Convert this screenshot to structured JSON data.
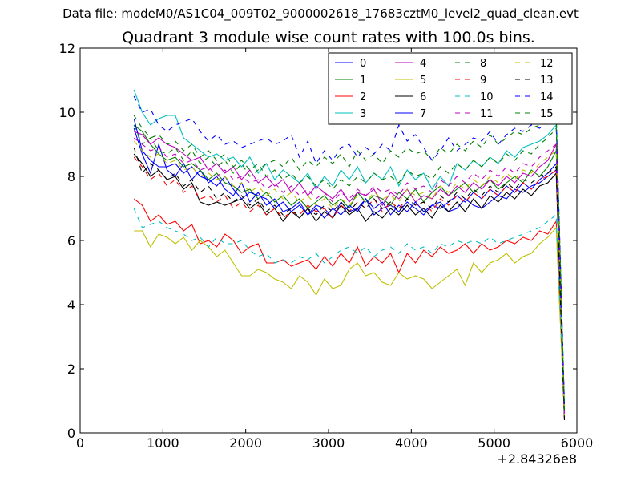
{
  "supertitle": "Data file: modeM0/AS1C04_009T02_9000002618_17683cztM0_level2_quad_clean.evt",
  "chart_data": {
    "type": "line",
    "title": "Quadrant 3 module wise count rates with 100.0s bins.",
    "xlabel": "",
    "ylabel": "",
    "xlim": [
      0,
      6000
    ],
    "ylim": [
      0,
      12
    ],
    "x_offset_label": "+2.84326e8",
    "x_ticks": [
      "0",
      "1000",
      "2000",
      "3000",
      "4000",
      "5000",
      "6000"
    ],
    "y_ticks": [
      "0",
      "2",
      "4",
      "6",
      "8",
      "10",
      "12"
    ],
    "grid": false,
    "legend_position": "top-right",
    "legend_columns": 4,
    "x": [
      650,
      750,
      850,
      950,
      1050,
      1150,
      1250,
      1350,
      1450,
      1550,
      1650,
      1750,
      1850,
      1950,
      2050,
      2150,
      2250,
      2350,
      2450,
      2550,
      2650,
      2750,
      2850,
      2950,
      3050,
      3150,
      3250,
      3350,
      3450,
      3550,
      3650,
      3750,
      3850,
      3950,
      4050,
      4150,
      4250,
      4350,
      4450,
      4550,
      4650,
      4750,
      4850,
      4950,
      5050,
      5150,
      5250,
      5350,
      5450,
      5550,
      5650,
      5750,
      5850
    ],
    "series": [
      {
        "name": "0",
        "color": "#0000ff",
        "dash": "solid",
        "values": [
          9.5,
          8.7,
          8.1,
          9.0,
          8.2,
          8.0,
          8.4,
          7.9,
          8.2,
          7.8,
          8.0,
          7.6,
          7.4,
          7.8,
          7.2,
          7.5,
          7.1,
          7.3,
          6.9,
          7.0,
          7.2,
          6.8,
          7.1,
          7.0,
          6.7,
          7.2,
          6.9,
          7.0,
          7.3,
          6.8,
          7.0,
          7.1,
          6.9,
          7.2,
          7.0,
          6.8,
          7.1,
          7.2,
          6.9,
          7.0,
          7.3,
          7.1,
          7.0,
          7.2,
          7.4,
          7.3,
          7.6,
          7.5,
          7.7,
          7.8,
          8.0,
          8.2,
          0.5
        ]
      },
      {
        "name": "1",
        "color": "#008000",
        "dash": "solid",
        "values": [
          9.6,
          9.4,
          9.0,
          8.7,
          8.5,
          8.6,
          8.3,
          8.4,
          8.2,
          7.9,
          8.1,
          7.8,
          7.7,
          7.5,
          7.6,
          7.3,
          7.5,
          7.2,
          7.4,
          7.1,
          7.3,
          7.0,
          7.2,
          7.4,
          7.1,
          7.3,
          7.0,
          7.5,
          7.2,
          7.4,
          7.3,
          7.1,
          7.5,
          7.3,
          7.6,
          7.2,
          7.5,
          7.7,
          7.4,
          7.6,
          7.8,
          7.5,
          7.7,
          7.9,
          7.6,
          7.8,
          8.0,
          7.8,
          8.2,
          8.0,
          8.3,
          8.8,
          0.6
        ]
      },
      {
        "name": "2",
        "color": "#ff0000",
        "dash": "solid",
        "values": [
          7.3,
          7.1,
          6.6,
          6.8,
          6.5,
          6.6,
          6.3,
          6.5,
          5.9,
          6.0,
          5.8,
          6.2,
          6.0,
          5.6,
          5.8,
          5.9,
          5.3,
          5.3,
          5.4,
          5.2,
          5.3,
          5.4,
          5.1,
          5.5,
          5.2,
          5.6,
          5.3,
          5.8,
          5.2,
          5.5,
          5.3,
          5.6,
          5.0,
          5.6,
          5.3,
          5.7,
          5.5,
          5.8,
          5.6,
          5.7,
          5.9,
          5.6,
          5.9,
          5.7,
          5.8,
          6.0,
          5.9,
          6.1,
          6.0,
          6.3,
          6.2,
          6.6,
          0.5
        ]
      },
      {
        "name": "3",
        "color": "#00bfbf",
        "dash": "solid",
        "values": [
          10.7,
          10.0,
          9.6,
          9.8,
          9.9,
          9.9,
          9.2,
          9.0,
          8.8,
          8.6,
          8.7,
          8.5,
          8.6,
          8.3,
          8.6,
          8.1,
          8.4,
          7.9,
          8.2,
          8.0,
          7.8,
          8.1,
          7.6,
          8.0,
          7.7,
          8.2,
          7.9,
          8.3,
          7.8,
          8.1,
          7.9,
          8.3,
          7.7,
          8.2,
          7.9,
          8.1,
          7.6,
          8.0,
          7.7,
          8.4,
          8.2,
          8.5,
          8.3,
          8.6,
          8.4,
          8.8,
          8.6,
          8.9,
          9.0,
          9.1,
          9.3,
          9.6,
          0.7
        ]
      },
      {
        "name": "4",
        "color": "#bf00bf",
        "dash": "solid",
        "values": [
          9.4,
          9.3,
          9.0,
          9.2,
          9.0,
          8.9,
          8.7,
          8.5,
          8.6,
          8.2,
          8.4,
          8.1,
          8.3,
          7.9,
          8.2,
          7.8,
          8.0,
          7.7,
          7.9,
          7.5,
          7.8,
          7.4,
          7.7,
          7.5,
          7.3,
          7.6,
          7.2,
          7.5,
          7.4,
          7.6,
          7.1,
          7.5,
          7.3,
          7.6,
          7.2,
          7.4,
          7.3,
          7.6,
          7.4,
          7.7,
          7.5,
          7.8,
          7.6,
          7.9,
          7.7,
          8.0,
          7.8,
          8.1,
          8.0,
          8.3,
          8.5,
          9.0,
          0.6
        ]
      },
      {
        "name": "5",
        "color": "#bfbf00",
        "dash": "solid",
        "values": [
          6.3,
          6.3,
          5.8,
          6.2,
          6.1,
          5.9,
          6.1,
          5.7,
          6.0,
          5.8,
          5.5,
          5.7,
          5.3,
          4.9,
          4.9,
          5.1,
          5.0,
          4.8,
          4.7,
          4.5,
          4.9,
          4.7,
          4.3,
          4.8,
          4.5,
          4.6,
          5.1,
          5.3,
          4.9,
          5.0,
          4.7,
          4.6,
          5.0,
          4.8,
          4.9,
          4.8,
          4.5,
          4.7,
          4.9,
          5.1,
          4.6,
          5.3,
          5.0,
          5.3,
          5.4,
          5.6,
          5.3,
          5.5,
          5.6,
          5.9,
          6.1,
          6.4,
          0.5
        ]
      },
      {
        "name": "6",
        "color": "#000000",
        "dash": "solid",
        "values": [
          8.7,
          8.4,
          8.0,
          8.2,
          7.9,
          8.0,
          7.6,
          7.8,
          7.2,
          7.1,
          7.2,
          7.1,
          7.2,
          7.3,
          7.0,
          7.2,
          6.8,
          7.0,
          6.6,
          6.9,
          6.7,
          7.0,
          6.6,
          6.9,
          6.7,
          7.1,
          6.8,
          7.0,
          6.6,
          6.9,
          6.7,
          7.0,
          6.8,
          7.1,
          6.8,
          7.0,
          6.7,
          7.1,
          6.9,
          7.2,
          6.9,
          7.3,
          7.0,
          7.4,
          7.2,
          7.5,
          7.3,
          7.6,
          7.4,
          7.7,
          7.8,
          8.1,
          0.4
        ]
      },
      {
        "name": "7",
        "color": "#0000ff",
        "dash": "solid",
        "values": [
          9.8,
          8.8,
          8.5,
          8.3,
          8.3,
          8.4,
          8.1,
          8.3,
          8.0,
          7.9,
          7.7,
          8.0,
          7.6,
          7.3,
          7.5,
          7.4,
          7.3,
          7.0,
          7.2,
          6.9,
          7.1,
          6.8,
          7.0,
          6.7,
          7.0,
          6.8,
          7.1,
          6.9,
          7.3,
          7.0,
          7.2,
          6.8,
          7.1,
          6.9,
          7.2,
          6.9,
          7.1,
          7.0,
          7.2,
          7.4,
          7.2,
          7.5,
          7.3,
          7.6,
          7.4,
          7.7,
          7.5,
          7.8,
          7.6,
          7.9,
          8.1,
          8.4,
          0.5
        ]
      },
      {
        "name": "8",
        "color": "#008000",
        "dash": "dashed",
        "values": [
          9.6,
          9.0,
          9.2,
          8.8,
          8.7,
          8.9,
          8.5,
          8.8,
          8.4,
          8.6,
          8.3,
          8.5,
          8.1,
          8.4,
          8.0,
          8.2,
          8.4,
          8.5,
          8.3,
          8.6,
          8.2,
          8.5,
          8.3,
          8.6,
          8.4,
          8.7,
          8.3,
          8.8,
          8.5,
          8.7,
          8.4,
          8.8,
          8.6,
          8.9,
          8.7,
          8.8,
          8.5,
          8.9,
          8.7,
          9.0,
          8.8,
          9.1,
          8.9,
          9.3,
          9.0,
          9.2,
          9.4,
          9.3,
          9.5,
          9.6,
          9.9,
          10.0,
          0.8
        ]
      },
      {
        "name": "9",
        "color": "#ff0000",
        "dash": "dashed",
        "values": [
          8.6,
          8.3,
          7.9,
          8.1,
          7.7,
          7.9,
          7.5,
          7.7,
          7.3,
          7.4,
          7.2,
          7.4,
          7.0,
          7.2,
          6.9,
          7.1,
          6.8,
          7.0,
          6.7,
          6.9,
          6.8,
          7.1,
          6.9,
          7.0,
          6.7,
          7.1,
          6.9,
          7.2,
          7.0,
          7.3,
          6.9,
          7.2,
          7.0,
          7.3,
          7.1,
          7.2,
          6.9,
          7.3,
          7.1,
          7.4,
          7.2,
          7.5,
          7.3,
          7.6,
          7.4,
          7.7,
          7.5,
          7.8,
          7.6,
          7.9,
          8.0,
          8.2,
          0.4
        ]
      },
      {
        "name": "10",
        "color": "#00bfbf",
        "dash": "dashed",
        "values": [
          7.0,
          6.4,
          6.5,
          6.6,
          6.4,
          6.3,
          6.2,
          6.0,
          6.1,
          5.8,
          6.1,
          5.9,
          5.9,
          6.0,
          5.7,
          5.5,
          5.6,
          5.3,
          5.4,
          5.3,
          5.5,
          5.4,
          5.6,
          5.3,
          5.5,
          5.7,
          5.8,
          5.6,
          5.8,
          5.5,
          5.7,
          5.8,
          5.6,
          5.9,
          5.7,
          5.8,
          5.6,
          5.9,
          5.8,
          6.0,
          5.9,
          6.0,
          5.9,
          6.1,
          5.9,
          6.0,
          6.1,
          6.2,
          6.3,
          6.4,
          6.6,
          6.8,
          0.6
        ]
      },
      {
        "name": "11",
        "color": "#bf00bf",
        "dash": "dashed",
        "values": [
          9.2,
          9.0,
          8.8,
          8.9,
          8.6,
          8.7,
          8.4,
          8.5,
          8.2,
          8.3,
          8.0,
          8.2,
          7.9,
          8.0,
          7.8,
          7.9,
          7.6,
          7.8,
          7.5,
          7.7,
          7.4,
          7.6,
          7.3,
          7.5,
          7.2,
          7.5,
          7.3,
          7.6,
          7.4,
          7.7,
          7.5,
          7.6,
          7.4,
          7.8,
          7.6,
          7.7,
          7.5,
          7.9,
          7.7,
          8.0,
          7.8,
          8.1,
          7.9,
          8.2,
          8.0,
          8.3,
          8.1,
          8.4,
          8.3,
          8.6,
          8.8,
          9.0,
          0.5
        ]
      },
      {
        "name": "12",
        "color": "#bfbf00",
        "dash": "dashed",
        "values": [
          9.1,
          8.8,
          8.6,
          8.7,
          8.4,
          8.5,
          8.2,
          8.3,
          8.0,
          8.1,
          7.9,
          8.0,
          7.7,
          7.8,
          7.5,
          7.7,
          7.4,
          7.6,
          7.3,
          7.5,
          7.2,
          7.4,
          7.1,
          7.3,
          7.0,
          7.3,
          7.1,
          7.4,
          7.2,
          7.5,
          7.3,
          7.4,
          7.2,
          7.6,
          7.4,
          7.5,
          7.3,
          7.7,
          7.5,
          7.8,
          7.6,
          7.9,
          7.7,
          8.0,
          7.8,
          8.1,
          7.9,
          8.2,
          8.1,
          8.4,
          8.6,
          8.8,
          0.5
        ]
      },
      {
        "name": "13",
        "color": "#000000",
        "dash": "dashed",
        "values": [
          8.9,
          8.1,
          8.4,
          8.2,
          7.9,
          8.1,
          7.7,
          7.9,
          7.5,
          7.7,
          7.3,
          7.5,
          7.2,
          7.4,
          7.1,
          7.3,
          6.9,
          7.1,
          6.8,
          7.0,
          6.7,
          7.0,
          6.8,
          7.1,
          6.9,
          7.2,
          6.9,
          7.2,
          7.0,
          7.3,
          7.0,
          7.2,
          6.9,
          7.3,
          7.1,
          7.2,
          7.0,
          7.4,
          7.2,
          7.5,
          7.3,
          7.6,
          7.4,
          7.7,
          7.5,
          7.8,
          7.6,
          7.9,
          7.8,
          8.0,
          8.1,
          8.3,
          0.4
        ]
      },
      {
        "name": "14",
        "color": "#0000ff",
        "dash": "dashed",
        "values": [
          10.5,
          10.0,
          10.1,
          9.6,
          9.4,
          9.6,
          9.7,
          9.8,
          9.4,
          9.1,
          9.3,
          9.0,
          9.1,
          8.9,
          9.0,
          9.1,
          9.2,
          9.0,
          9.1,
          9.3,
          8.6,
          9.1,
          8.4,
          8.8,
          8.5,
          8.9,
          9.0,
          8.6,
          8.9,
          8.7,
          9.0,
          8.8,
          9.6,
          9.1,
          9.3,
          8.9,
          8.5,
          8.8,
          9.2,
          8.8,
          9.0,
          9.2,
          9.1,
          9.4,
          9.0,
          9.3,
          9.5,
          9.4,
          9.6,
          9.5,
          9.7,
          9.9,
          0.9
        ]
      },
      {
        "name": "15",
        "color": "#008000",
        "dash": "dashed",
        "values": [
          9.9,
          9.5,
          9.2,
          9.3,
          9.0,
          9.1,
          8.8,
          9.0,
          8.6,
          8.8,
          8.5,
          8.7,
          8.3,
          8.5,
          8.2,
          8.4,
          8.0,
          8.2,
          7.9,
          8.1,
          7.8,
          8.0,
          7.7,
          7.9,
          7.6,
          7.9,
          7.7,
          8.0,
          7.8,
          8.1,
          7.9,
          8.0,
          7.8,
          8.2,
          8.0,
          8.1,
          7.9,
          8.3,
          8.1,
          8.4,
          8.2,
          8.5,
          8.3,
          8.6,
          8.4,
          8.7,
          8.5,
          8.8,
          8.7,
          9.0,
          9.2,
          9.5,
          0.7
        ]
      }
    ]
  }
}
